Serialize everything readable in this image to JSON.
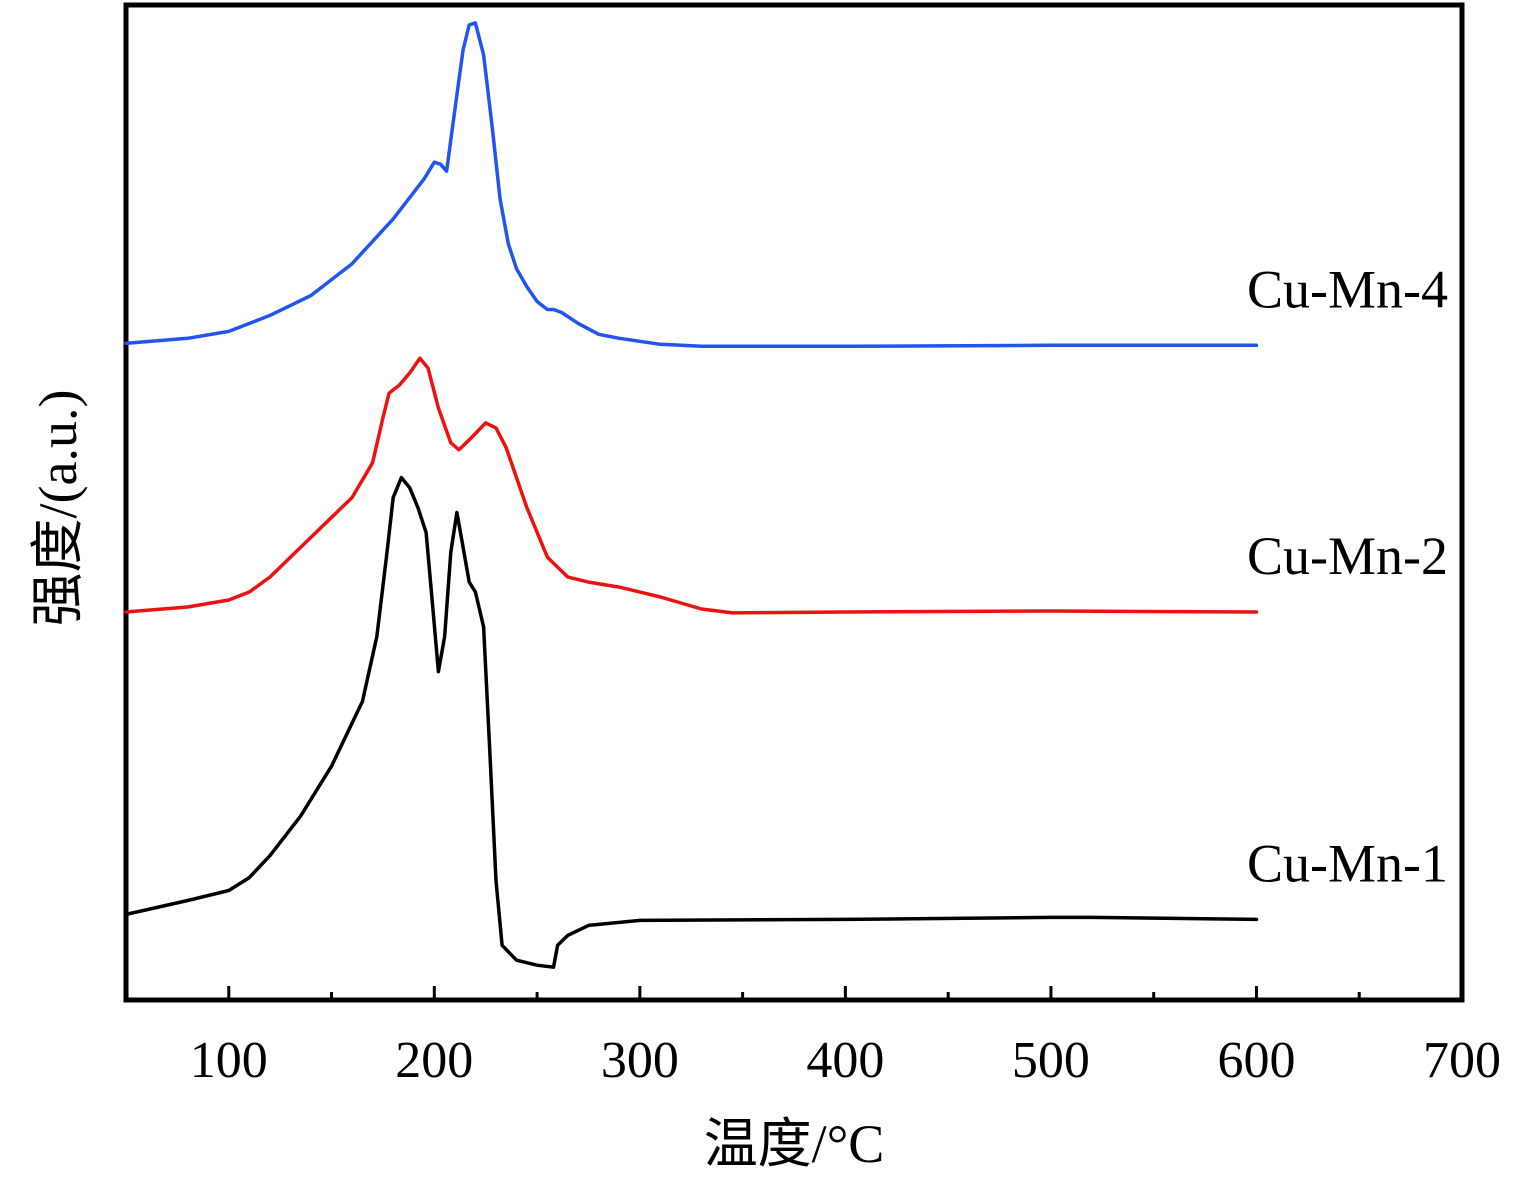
{
  "chart_data": {
    "type": "line",
    "title": "",
    "xlabel": "温度/°C",
    "ylabel": "强度/(a.u.)",
    "xlim": [
      50,
      700
    ],
    "ylim": [
      0,
      100
    ],
    "xticks": [
      100,
      200,
      300,
      400,
      500,
      600,
      700
    ],
    "xminor_ticks": [
      150,
      250,
      350,
      450,
      550,
      650
    ],
    "y_tick_labels": false,
    "grid": false,
    "legend": "none",
    "series": [
      {
        "name": "Cu-Mn-4",
        "color": "#2255ee",
        "points": [
          [
            50,
            66.0
          ],
          [
            80,
            66.5
          ],
          [
            100,
            67.2
          ],
          [
            120,
            68.8
          ],
          [
            140,
            70.8
          ],
          [
            160,
            74.0
          ],
          [
            180,
            78.5
          ],
          [
            195,
            82.5
          ],
          [
            200,
            84.2
          ],
          [
            203,
            84.0
          ],
          [
            206,
            83.3
          ],
          [
            210,
            89.5
          ],
          [
            214,
            95.5
          ],
          [
            217,
            98.0
          ],
          [
            220,
            98.2
          ],
          [
            224,
            95.0
          ],
          [
            228,
            88.0
          ],
          [
            232,
            80.5
          ],
          [
            236,
            76.0
          ],
          [
            240,
            73.5
          ],
          [
            245,
            71.7
          ],
          [
            250,
            70.2
          ],
          [
            255,
            69.4
          ],
          [
            258,
            69.4
          ],
          [
            262,
            69.1
          ],
          [
            270,
            68.0
          ],
          [
            280,
            66.9
          ],
          [
            290,
            66.5
          ],
          [
            310,
            65.9
          ],
          [
            330,
            65.7
          ],
          [
            400,
            65.7
          ],
          [
            500,
            65.8
          ],
          [
            600,
            65.8
          ]
        ]
      },
      {
        "name": "Cu-Mn-2",
        "color": "#ee1111",
        "points": [
          [
            50,
            39.0
          ],
          [
            80,
            39.5
          ],
          [
            100,
            40.2
          ],
          [
            110,
            41.0
          ],
          [
            120,
            42.5
          ],
          [
            140,
            46.5
          ],
          [
            160,
            50.5
          ],
          [
            170,
            54.0
          ],
          [
            175,
            58.5
          ],
          [
            178,
            61.0
          ],
          [
            183,
            61.8
          ],
          [
            188,
            63.0
          ],
          [
            193,
            64.5
          ],
          [
            197,
            63.5
          ],
          [
            202,
            59.5
          ],
          [
            208,
            56.0
          ],
          [
            212,
            55.3
          ],
          [
            218,
            56.5
          ],
          [
            225,
            58.0
          ],
          [
            230,
            57.5
          ],
          [
            235,
            55.5
          ],
          [
            245,
            49.5
          ],
          [
            255,
            44.5
          ],
          [
            265,
            42.5
          ],
          [
            275,
            42.0
          ],
          [
            290,
            41.5
          ],
          [
            310,
            40.5
          ],
          [
            330,
            39.3
          ],
          [
            345,
            38.9
          ],
          [
            400,
            39.0
          ],
          [
            500,
            39.1
          ],
          [
            600,
            39.0
          ]
        ]
      },
      {
        "name": "Cu-Mn-1",
        "color": "#000000",
        "points": [
          [
            50,
            8.6
          ],
          [
            80,
            10.0
          ],
          [
            100,
            11.0
          ],
          [
            110,
            12.3
          ],
          [
            120,
            14.5
          ],
          [
            135,
            18.5
          ],
          [
            150,
            23.5
          ],
          [
            165,
            30.0
          ],
          [
            172,
            36.5
          ],
          [
            177,
            45.0
          ],
          [
            180,
            50.5
          ],
          [
            184,
            52.5
          ],
          [
            188,
            51.5
          ],
          [
            192,
            49.5
          ],
          [
            196,
            47.0
          ],
          [
            199,
            40.0
          ],
          [
            202,
            33.0
          ],
          [
            205,
            36.5
          ],
          [
            208,
            45.0
          ],
          [
            211,
            49.0
          ],
          [
            214,
            45.5
          ],
          [
            217,
            42.0
          ],
          [
            220,
            41.0
          ],
          [
            224,
            37.5
          ],
          [
            227,
            25.0
          ],
          [
            230,
            12.0
          ],
          [
            233,
            5.5
          ],
          [
            240,
            4.0
          ],
          [
            250,
            3.5
          ],
          [
            258,
            3.3
          ],
          [
            260,
            5.5
          ],
          [
            265,
            6.5
          ],
          [
            275,
            7.5
          ],
          [
            300,
            8.0
          ],
          [
            400,
            8.1
          ],
          [
            500,
            8.3
          ],
          [
            520,
            8.3
          ],
          [
            600,
            8.1
          ]
        ]
      }
    ]
  }
}
